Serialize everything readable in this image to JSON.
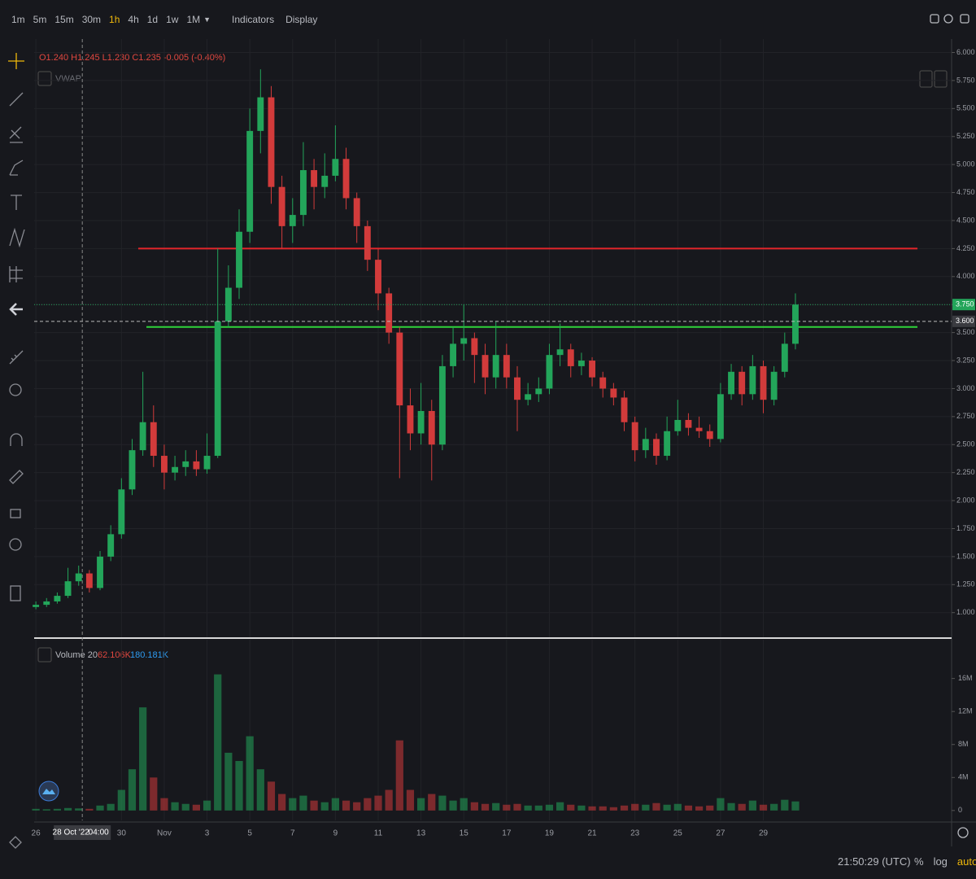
{
  "toolbar": {
    "intervals": [
      "1m",
      "5m",
      "15m",
      "30m",
      "1h",
      "4h",
      "1d",
      "1w",
      "1M"
    ],
    "active_interval": "1h",
    "buttons": [
      "Indicators",
      "Display"
    ]
  },
  "chart_data": {
    "type": "candlestick",
    "ohlc_legend": "O1.240 H1.245 L1.230 C1.235 -0.005 (-0.40%)",
    "indicator": "VWAP",
    "up_color": "#23a55a",
    "down_color": "#d23b3b",
    "x": [
      0,
      0.5,
      1,
      1.5,
      2,
      2.5,
      3,
      3.5,
      4,
      4.5,
      5,
      5.5,
      6,
      6.5,
      7,
      7.5,
      8,
      8.5,
      9,
      9.5,
      10,
      10.5,
      11,
      11.5,
      12,
      12.5,
      13,
      13.5,
      14,
      14.5,
      15,
      15.5,
      16,
      16.5,
      17,
      17.5,
      18,
      18.5,
      19,
      19.5,
      20,
      20.5,
      21,
      21.5,
      22,
      22.5,
      23,
      23.5,
      24,
      24.5,
      25,
      25.5,
      26,
      26.5,
      27,
      27.5,
      28,
      28.5,
      29,
      29.5,
      30,
      30.5,
      31,
      31.5,
      32,
      32.5,
      33,
      33.5,
      34,
      34.5,
      35,
      35.5
    ],
    "open": [
      1.05,
      1.07,
      1.1,
      1.15,
      1.28,
      1.35,
      1.22,
      1.5,
      1.7,
      2.1,
      2.45,
      2.7,
      2.4,
      2.25,
      2.3,
      2.35,
      2.28,
      2.4,
      3.6,
      3.9,
      4.4,
      5.3,
      5.6,
      4.8,
      4.45,
      4.55,
      4.95,
      4.8,
      4.9,
      5.05,
      4.7,
      4.45,
      4.15,
      3.85,
      3.5,
      2.85,
      2.6,
      2.8,
      2.5,
      3.2,
      3.4,
      3.45,
      3.3,
      3.1,
      3.3,
      3.1,
      2.9,
      2.95,
      3.0,
      3.3,
      3.35,
      3.2,
      3.25,
      3.1,
      3.0,
      2.92,
      2.7,
      2.45,
      2.55,
      2.4,
      2.62,
      2.72,
      2.65,
      2.62,
      2.55,
      2.95,
      3.15,
      2.95,
      3.2,
      2.9,
      3.15,
      3.4
    ],
    "high": [
      1.1,
      1.13,
      1.18,
      1.4,
      1.42,
      1.38,
      1.55,
      1.78,
      2.2,
      2.55,
      3.15,
      2.85,
      2.5,
      2.4,
      2.45,
      2.45,
      2.6,
      4.25,
      4.1,
      4.6,
      5.5,
      5.85,
      5.7,
      4.9,
      4.7,
      5.2,
      5.05,
      5.1,
      5.35,
      5.15,
      4.75,
      4.5,
      4.25,
      3.9,
      3.55,
      3.0,
      3.05,
      2.9,
      3.3,
      3.55,
      3.75,
      3.5,
      3.4,
      3.6,
      3.4,
      3.2,
      3.05,
      3.1,
      3.4,
      3.58,
      3.4,
      3.32,
      3.28,
      3.15,
      3.05,
      2.98,
      2.75,
      2.65,
      2.6,
      2.75,
      2.9,
      2.78,
      2.75,
      2.68,
      3.05,
      3.22,
      3.2,
      3.3,
      3.25,
      3.2,
      3.5,
      3.85
    ],
    "low": [
      1.03,
      1.05,
      1.08,
      1.13,
      1.24,
      1.18,
      1.2,
      1.46,
      1.66,
      2.05,
      2.4,
      2.3,
      2.1,
      2.18,
      2.22,
      2.22,
      2.24,
      2.38,
      3.55,
      3.8,
      4.3,
      5.1,
      4.65,
      4.25,
      4.3,
      4.45,
      4.6,
      4.7,
      4.85,
      4.6,
      4.3,
      4.05,
      3.7,
      3.4,
      2.2,
      2.45,
      2.5,
      2.18,
      2.45,
      3.1,
      3.25,
      3.05,
      2.95,
      3.0,
      3.0,
      2.62,
      2.85,
      2.88,
      2.95,
      3.2,
      3.1,
      3.12,
      3.02,
      2.92,
      2.85,
      2.62,
      2.35,
      2.38,
      2.32,
      2.36,
      2.58,
      2.58,
      2.56,
      2.48,
      2.52,
      2.9,
      2.85,
      2.9,
      2.78,
      2.85,
      3.1,
      3.35
    ],
    "close": [
      1.07,
      1.1,
      1.15,
      1.28,
      1.35,
      1.22,
      1.5,
      1.7,
      2.1,
      2.45,
      2.7,
      2.4,
      2.25,
      2.3,
      2.35,
      2.28,
      2.4,
      3.6,
      3.9,
      4.4,
      5.3,
      5.6,
      4.8,
      4.45,
      4.55,
      4.95,
      4.8,
      4.9,
      5.05,
      4.7,
      4.45,
      4.15,
      3.85,
      3.5,
      2.85,
      2.6,
      2.8,
      2.5,
      3.2,
      3.4,
      3.45,
      3.3,
      3.1,
      3.3,
      3.1,
      2.9,
      2.95,
      3.0,
      3.3,
      3.35,
      3.2,
      3.25,
      3.1,
      3.0,
      2.92,
      2.7,
      2.45,
      2.55,
      2.4,
      2.62,
      2.72,
      2.65,
      2.62,
      2.55,
      2.95,
      3.15,
      2.95,
      3.2,
      2.9,
      3.15,
      3.4,
      3.75
    ],
    "xlim": [
      -0.08,
      42.8
    ],
    "xticks": [
      {
        "value": 0,
        "label": "26"
      },
      {
        "value": 4,
        "label": "30"
      },
      {
        "value": 6,
        "label": "Nov"
      },
      {
        "value": 8,
        "label": "3"
      },
      {
        "value": 10,
        "label": "5"
      },
      {
        "value": 12,
        "label": "7"
      },
      {
        "value": 14,
        "label": "9"
      },
      {
        "value": 16,
        "label": "11"
      },
      {
        "value": 18,
        "label": "13"
      },
      {
        "value": 20,
        "label": "15"
      },
      {
        "value": 22,
        "label": "17"
      },
      {
        "value": 24,
        "label": "19"
      },
      {
        "value": 26,
        "label": "21"
      },
      {
        "value": 28,
        "label": "23"
      },
      {
        "value": 30,
        "label": "25"
      },
      {
        "value": 32,
        "label": "27"
      },
      {
        "value": 34,
        "label": "29"
      }
    ],
    "ylim": [
      0.78,
      6.12
    ],
    "yticks": [
      {
        "value": 1,
        "label": "1.000"
      },
      {
        "value": 1.25,
        "label": "1.250"
      },
      {
        "value": 1.5,
        "label": "1.500"
      },
      {
        "value": 1.75,
        "label": "1.750"
      },
      {
        "value": 2,
        "label": "2.000"
      },
      {
        "value": 2.25,
        "label": "2.250"
      },
      {
        "value": 2.5,
        "label": "2.500"
      },
      {
        "value": 2.75,
        "label": "2.750"
      },
      {
        "value": 3,
        "label": "3.000"
      },
      {
        "value": 3.25,
        "label": "3.250"
      },
      {
        "value": 3.5,
        "label": "3.500"
      },
      {
        "value": 3.75,
        "label": "3.750"
      },
      {
        "value": 4,
        "label": "4.000"
      },
      {
        "value": 4.25,
        "label": "4.250"
      },
      {
        "value": 4.5,
        "label": "4.500"
      },
      {
        "value": 4.75,
        "label": "4.750"
      },
      {
        "value": 5,
        "label": "5.000"
      },
      {
        "value": 5.25,
        "label": "5.250"
      },
      {
        "value": 5.5,
        "label": "5.500"
      },
      {
        "value": 5.75,
        "label": "5.750"
      },
      {
        "value": 6,
        "label": "6.000"
      }
    ],
    "grid": true,
    "levels": [
      {
        "value": 4.25,
        "color": "#e3262b"
      },
      {
        "value": 3.55,
        "color": "#2fd43a"
      }
    ],
    "last_price": {
      "value": 3.75,
      "label": "3.750"
    },
    "crosshair": {
      "x": 2.17,
      "value": 3.6,
      "label": "3.600",
      "date_label": "28 Oct '22",
      "time_label": "04:00"
    },
    "volume": {
      "title": "Volume 20",
      "legend_values": [
        "62.106K",
        "180.181K"
      ],
      "values": [
        200000,
        150000,
        200000,
        300000,
        250000,
        200000,
        600000,
        800000,
        2500000,
        5000000,
        12500000,
        4000000,
        1500000,
        1000000,
        800000,
        700000,
        1200000,
        16500000,
        7000000,
        6000000,
        9000000,
        5000000,
        3500000,
        2000000,
        1500000,
        1800000,
        1200000,
        1000000,
        1500000,
        1200000,
        1000000,
        1500000,
        1800000,
        2500000,
        8500000,
        2500000,
        1500000,
        2000000,
        1800000,
        1200000,
        1500000,
        1000000,
        800000,
        900000,
        700000,
        800000,
        600000,
        600000,
        700000,
        1000000,
        700000,
        600000,
        500000,
        500000,
        400000,
        600000,
        800000,
        700000,
        900000,
        700000,
        800000,
        600000,
        500000,
        600000,
        1500000,
        900000,
        800000,
        1200000,
        700000,
        800000,
        1300000,
        1100000
      ],
      "ylim": [
        -1200000,
        20700000
      ],
      "yticks": [
        0,
        {
          "value": 4000000,
          "label": "4M"
        },
        {
          "value": 8000000,
          "label": "8M"
        },
        {
          "value": 12000000,
          "label": "12M"
        },
        {
          "value": 16000000,
          "label": "16M"
        }
      ]
    }
  },
  "status_bar": {
    "time": "21:50:29 (UTC)",
    "options": [
      "%",
      "log",
      "auto"
    ],
    "active_option": "auto"
  }
}
